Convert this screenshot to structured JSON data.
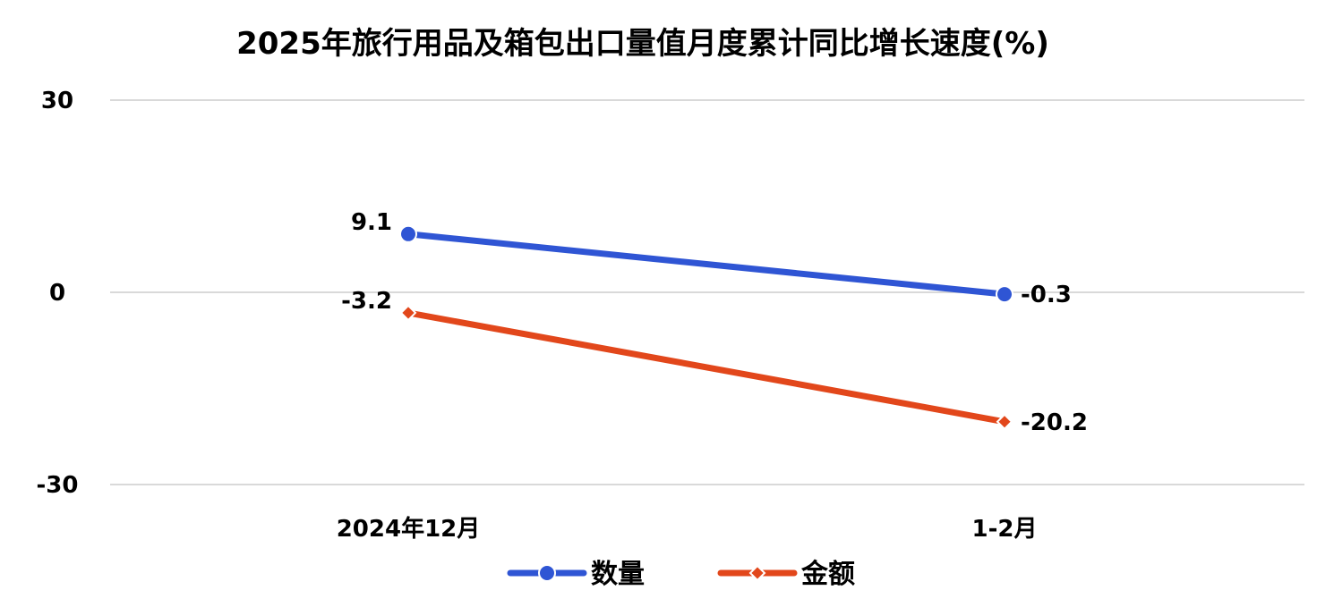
{
  "chart_data": {
    "type": "line",
    "title": "2025年旅行用品及箱包出口量值月度累计同比增长速度(%)",
    "categories": [
      "2024年12月",
      "1-2月"
    ],
    "series": [
      {
        "name": "数量",
        "values": [
          9.1,
          -0.3
        ],
        "labels": [
          "9.1",
          "-0.3"
        ],
        "color": "#2f55d4",
        "marker": "circle"
      },
      {
        "name": "金额",
        "values": [
          -3.2,
          -20.2
        ],
        "labels": [
          "-3.2",
          "-20.2"
        ],
        "color": "#e2471b",
        "marker": "diamond"
      }
    ],
    "ylim": [
      -30,
      30
    ],
    "yticks": [
      30,
      0,
      -30
    ],
    "grid": true,
    "legend": "bottom"
  }
}
